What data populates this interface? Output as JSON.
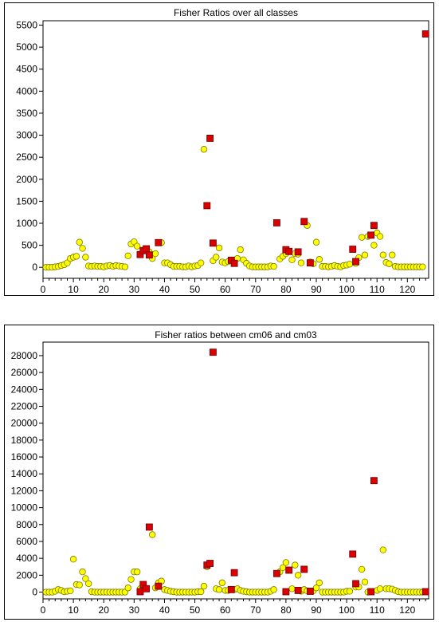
{
  "chart_data": [
    {
      "type": "scatter",
      "title": "Fisher Ratios over all classes",
      "xlim": [
        0,
        127
      ],
      "ylim": [
        -250,
        5600
      ],
      "x_ticks": [
        0,
        10,
        20,
        30,
        40,
        50,
        60,
        70,
        80,
        90,
        100,
        110,
        120
      ],
      "y_ticks": [
        0,
        500,
        1000,
        1500,
        2000,
        2500,
        3000,
        3500,
        4000,
        4500,
        5000,
        5500
      ],
      "grid": false,
      "series": [
        {
          "marker": "circle",
          "color": "#ffff00",
          "points": [
            [
              1,
              0
            ],
            [
              2,
              0
            ],
            [
              3,
              0
            ],
            [
              4,
              10
            ],
            [
              5,
              20
            ],
            [
              6,
              40
            ],
            [
              7,
              60
            ],
            [
              8,
              100
            ],
            [
              9,
              200
            ],
            [
              10,
              230
            ],
            [
              11,
              250
            ],
            [
              12,
              570
            ],
            [
              13,
              430
            ],
            [
              14,
              230
            ],
            [
              15,
              30
            ],
            [
              16,
              20
            ],
            [
              17,
              30
            ],
            [
              18,
              20
            ],
            [
              19,
              20
            ],
            [
              20,
              10
            ],
            [
              21,
              30
            ],
            [
              22,
              40
            ],
            [
              23,
              20
            ],
            [
              24,
              40
            ],
            [
              25,
              30
            ],
            [
              26,
              20
            ],
            [
              27,
              10
            ],
            [
              28,
              260
            ],
            [
              29,
              530
            ],
            [
              30,
              580
            ],
            [
              31,
              480
            ],
            [
              33,
              390
            ],
            [
              35,
              350
            ],
            [
              36,
              200
            ],
            [
              37,
              310
            ],
            [
              39,
              560
            ],
            [
              40,
              100
            ],
            [
              41,
              100
            ],
            [
              42,
              60
            ],
            [
              43,
              20
            ],
            [
              44,
              20
            ],
            [
              45,
              20
            ],
            [
              46,
              10
            ],
            [
              47,
              10
            ],
            [
              48,
              30
            ],
            [
              49,
              10
            ],
            [
              50,
              30
            ],
            [
              51,
              40
            ],
            [
              52,
              100
            ],
            [
              53,
              2680
            ],
            [
              56,
              150
            ],
            [
              57,
              230
            ],
            [
              58,
              440
            ],
            [
              59,
              120
            ],
            [
              60,
              100
            ],
            [
              61,
              130
            ],
            [
              63,
              130
            ],
            [
              64,
              200
            ],
            [
              65,
              400
            ],
            [
              66,
              170
            ],
            [
              67,
              90
            ],
            [
              68,
              30
            ],
            [
              69,
              10
            ],
            [
              70,
              10
            ],
            [
              71,
              10
            ],
            [
              72,
              10
            ],
            [
              73,
              10
            ],
            [
              74,
              10
            ],
            [
              75,
              30
            ],
            [
              76,
              20
            ],
            [
              78,
              190
            ],
            [
              79,
              250
            ],
            [
              80,
              310
            ],
            [
              82,
              170
            ],
            [
              83,
              310
            ],
            [
              84,
              300
            ],
            [
              85,
              100
            ],
            [
              87,
              950
            ],
            [
              88,
              120
            ],
            [
              89,
              80
            ],
            [
              90,
              570
            ],
            [
              91,
              180
            ],
            [
              92,
              20
            ],
            [
              93,
              20
            ],
            [
              94,
              10
            ],
            [
              95,
              20
            ],
            [
              96,
              40
            ],
            [
              97,
              20
            ],
            [
              98,
              10
            ],
            [
              99,
              40
            ],
            [
              100,
              50
            ],
            [
              101,
              70
            ],
            [
              103,
              90
            ],
            [
              104,
              220
            ],
            [
              105,
              680
            ],
            [
              106,
              280
            ],
            [
              107,
              700
            ],
            [
              109,
              500
            ],
            [
              110,
              780
            ],
            [
              111,
              700
            ],
            [
              112,
              280
            ],
            [
              113,
              110
            ],
            [
              114,
              80
            ],
            [
              115,
              280
            ],
            [
              116,
              20
            ],
            [
              117,
              10
            ],
            [
              118,
              10
            ],
            [
              119,
              10
            ],
            [
              120,
              10
            ],
            [
              121,
              10
            ],
            [
              122,
              10
            ],
            [
              123,
              10
            ],
            [
              124,
              10
            ],
            [
              125,
              10
            ]
          ]
        },
        {
          "marker": "square",
          "color": "#dd0000",
          "points": [
            [
              32,
              290
            ],
            [
              33,
              380
            ],
            [
              34,
              420
            ],
            [
              35,
              280
            ],
            [
              38,
              560
            ],
            [
              54,
              1400
            ],
            [
              55,
              2930
            ],
            [
              56,
              550
            ],
            [
              62,
              160
            ],
            [
              63,
              90
            ],
            [
              77,
              1010
            ],
            [
              80,
              400
            ],
            [
              81,
              360
            ],
            [
              84,
              350
            ],
            [
              86,
              1040
            ],
            [
              88,
              100
            ],
            [
              102,
              410
            ],
            [
              103,
              130
            ],
            [
              108,
              730
            ],
            [
              109,
              950
            ],
            [
              126,
              5300
            ]
          ]
        }
      ]
    },
    {
      "type": "scatter",
      "title": "Fisher ratios between cm06 and cm03",
      "xlim": [
        0,
        127
      ],
      "ylim": [
        -800,
        29600
      ],
      "x_ticks": [
        0,
        10,
        20,
        30,
        40,
        50,
        60,
        70,
        80,
        90,
        100,
        110,
        120
      ],
      "y_ticks": [
        0,
        2000,
        4000,
        6000,
        8000,
        10000,
        12000,
        14000,
        16000,
        18000,
        20000,
        22000,
        24000,
        26000,
        28000
      ],
      "grid": false,
      "series": [
        {
          "marker": "circle",
          "color": "#ffff00",
          "points": [
            [
              1,
              0
            ],
            [
              2,
              0
            ],
            [
              3,
              0
            ],
            [
              4,
              100
            ],
            [
              5,
              300
            ],
            [
              6,
              200
            ],
            [
              7,
              50
            ],
            [
              8,
              100
            ],
            [
              9,
              150
            ],
            [
              10,
              3900
            ],
            [
              11,
              900
            ],
            [
              12,
              850
            ],
            [
              13,
              2400
            ],
            [
              14,
              1600
            ],
            [
              15,
              1000
            ],
            [
              16,
              50
            ],
            [
              17,
              0
            ],
            [
              18,
              0
            ],
            [
              19,
              0
            ],
            [
              20,
              0
            ],
            [
              21,
              0
            ],
            [
              22,
              0
            ],
            [
              23,
              0
            ],
            [
              24,
              0
            ],
            [
              25,
              0
            ],
            [
              26,
              0
            ],
            [
              27,
              0
            ],
            [
              28,
              500
            ],
            [
              29,
              1500
            ],
            [
              30,
              2400
            ],
            [
              31,
              2400
            ],
            [
              32,
              400
            ],
            [
              36,
              6800
            ],
            [
              37,
              500
            ],
            [
              38,
              1100
            ],
            [
              39,
              1300
            ],
            [
              40,
              300
            ],
            [
              41,
              200
            ],
            [
              42,
              100
            ],
            [
              43,
              50
            ],
            [
              44,
              0
            ],
            [
              45,
              0
            ],
            [
              46,
              0
            ],
            [
              47,
              0
            ],
            [
              48,
              0
            ],
            [
              49,
              0
            ],
            [
              50,
              0
            ],
            [
              51,
              50
            ],
            [
              52,
              50
            ],
            [
              53,
              700
            ],
            [
              54,
              3000
            ],
            [
              57,
              400
            ],
            [
              58,
              300
            ],
            [
              59,
              1100
            ],
            [
              60,
              200
            ],
            [
              61,
              200
            ],
            [
              63,
              300
            ],
            [
              64,
              400
            ],
            [
              65,
              200
            ],
            [
              66,
              100
            ],
            [
              67,
              50
            ],
            [
              68,
              0
            ],
            [
              69,
              0
            ],
            [
              70,
              0
            ],
            [
              71,
              0
            ],
            [
              72,
              0
            ],
            [
              73,
              0
            ],
            [
              74,
              0
            ],
            [
              75,
              100
            ],
            [
              76,
              300
            ],
            [
              78,
              2400
            ],
            [
              79,
              2900
            ],
            [
              80,
              3500
            ],
            [
              82,
              400
            ],
            [
              83,
              3200
            ],
            [
              84,
              2000
            ],
            [
              85,
              100
            ],
            [
              86,
              300
            ],
            [
              87,
              150
            ],
            [
              89,
              150
            ],
            [
              90,
              500
            ],
            [
              91,
              1100
            ],
            [
              92,
              0
            ],
            [
              93,
              0
            ],
            [
              94,
              0
            ],
            [
              95,
              0
            ],
            [
              96,
              0
            ],
            [
              97,
              0
            ],
            [
              98,
              0
            ],
            [
              99,
              0
            ],
            [
              100,
              100
            ],
            [
              101,
              100
            ],
            [
              103,
              600
            ],
            [
              104,
              600
            ],
            [
              105,
              2700
            ],
            [
              106,
              1200
            ],
            [
              107,
              0
            ],
            [
              110,
              200
            ],
            [
              111,
              400
            ],
            [
              112,
              5000
            ],
            [
              113,
              400
            ],
            [
              114,
              400
            ],
            [
              115,
              350
            ],
            [
              116,
              200
            ],
            [
              117,
              50
            ],
            [
              118,
              0
            ],
            [
              119,
              0
            ],
            [
              120,
              0
            ],
            [
              121,
              0
            ],
            [
              122,
              0
            ],
            [
              123,
              0
            ],
            [
              124,
              0
            ],
            [
              125,
              0
            ]
          ]
        },
        {
          "marker": "square",
          "color": "#dd0000",
          "points": [
            [
              32,
              50
            ],
            [
              33,
              900
            ],
            [
              34,
              400
            ],
            [
              35,
              7700
            ],
            [
              38,
              700
            ],
            [
              54,
              3200
            ],
            [
              55,
              3400
            ],
            [
              56,
              28400
            ],
            [
              62,
              300
            ],
            [
              63,
              2300
            ],
            [
              77,
              2200
            ],
            [
              80,
              50
            ],
            [
              81,
              2600
            ],
            [
              84,
              200
            ],
            [
              86,
              2700
            ],
            [
              88,
              100
            ],
            [
              102,
              4500
            ],
            [
              103,
              1000
            ],
            [
              108,
              50
            ],
            [
              109,
              13200
            ],
            [
              126,
              50
            ]
          ]
        }
      ]
    }
  ]
}
